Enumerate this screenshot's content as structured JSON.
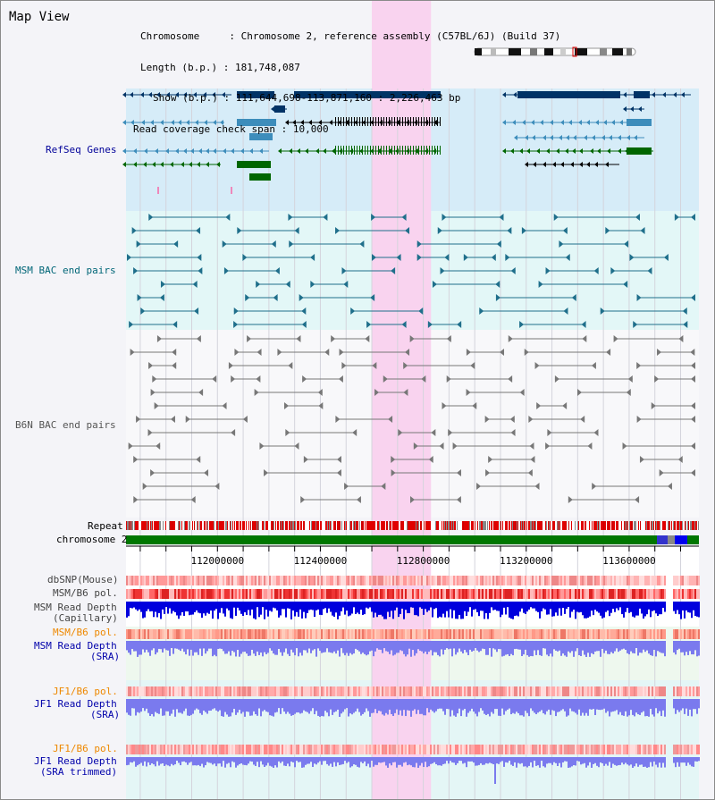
{
  "page": {
    "title": "Map View"
  },
  "info": {
    "chromosome_label": "Chromosome",
    "chromosome_value": "Chromosome 2, reference assembly (C57BL/6J) (Build 37)",
    "length_label": "Length (b.p.)",
    "length_value": "181,748,087",
    "show_label": "Show (b.p.)",
    "show_value": "111,644,698-113,871,160 : 2,226,463 bp",
    "coverage_label": "Read coverage check span",
    "coverage_value": "10,000"
  },
  "tracks": {
    "refseq": "RefSeq Genes",
    "msm_bac": "MSM BAC end pairs",
    "b6n_bac": "B6N BAC end pairs",
    "repeat": "Repeat",
    "chromosome": "chromosome 2",
    "dbsnp": "dbSNP(Mouse)",
    "msm_b6_pol_1": "MSM/B6 pol.",
    "msm_read_cap_1": "MSM Read Depth",
    "msm_read_cap_2": "(Capillary)",
    "msm_b6_pol_2": "MSM/B6 pol.",
    "msm_read_sra_1": "MSM Read Depth",
    "msm_read_sra_2": "(SRA)",
    "jf1_b6_pol_1": "JF1/B6 pol.",
    "jf1_read_sra_1": "JF1 Read Depth",
    "jf1_read_sra_2": "(SRA)",
    "jf1_b6_pol_2": "JF1/B6 pol.",
    "jf1_read_trim_1": "JF1 Read Depth",
    "jf1_read_trim_2": "(SRA trimmed)"
  },
  "chart_data": {
    "type": "genome-browser",
    "x_range": [
      111644698,
      113871160
    ],
    "ticks": [
      112000000,
      112400000,
      112800000,
      113200000,
      113600000
    ],
    "highlight": [
      112600000,
      112830000
    ],
    "colors": {
      "highlight": "#f9d3ef",
      "refseq_bg": "#d6ecf8",
      "bac_bg": "#e3f7f7",
      "gene_navy": "#003366",
      "gene_blue": "#3d8dbb",
      "gene_green": "#006600",
      "bac_msm": "#1f6f8b",
      "bac_b6n": "#777777",
      "repeat_red": "#e00000",
      "chrom_green": "#007700",
      "depth_blue": "#0000dd",
      "depth_light": "#7a7aee",
      "pol_red": "#ee3333",
      "pol_orange": "#ee8800"
    }
  }
}
